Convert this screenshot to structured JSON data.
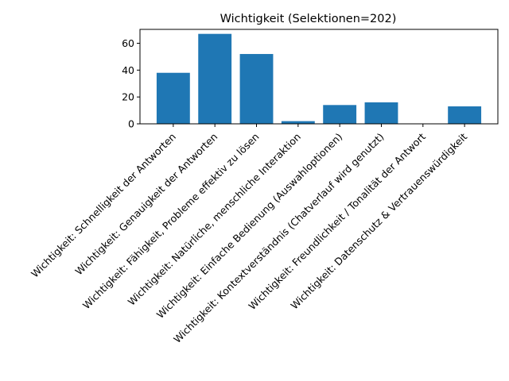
{
  "chart_data": {
    "type": "bar",
    "title": "Wichtigkeit (Selektionen=202)",
    "xlabel": "",
    "ylabel": "",
    "categories": [
      "Wichtigkeit: Schnelligkeit der Antworten",
      "Wichtigkeit: Genauigkeit der Antworten",
      "Wichtigkeit: Fähigkeit, Probleme effektiv zu lösen",
      "Wichtigkeit: Natürliche, menschliche Interaktion",
      "Wichtigkeit: Einfache Bedienung (Auswahloptionen)",
      "Wichtigkeit: Kontextverständnis (Chatverlauf wird genutzt)",
      "Wichtigkeit: Freundlichkeit / Tonalität der Antwort",
      "Wichtigkeit: Datenschutz & Vertrauenswürdigkeit"
    ],
    "values": [
      38,
      67,
      52,
      2,
      14,
      16,
      0,
      13
    ],
    "ylim": [
      0,
      70.35
    ],
    "yticks": [
      0,
      20,
      40,
      60
    ],
    "grid": false,
    "bar_color": "#1f77b4"
  }
}
